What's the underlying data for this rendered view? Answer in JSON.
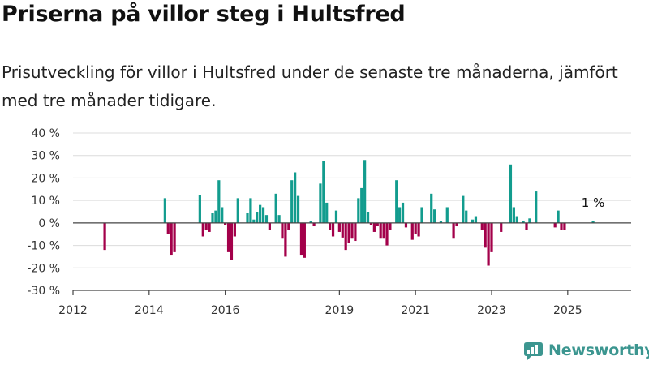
{
  "title": "Priserna på villor steg i Hultsfred",
  "subtitle": "Prisutveckling för villor i Hultsfred under de senaste tre månaderna, jämfört med tre månader tidigare.",
  "brand": "Newsworthy",
  "colors": {
    "positive": "#129c8e",
    "negative": "#a3004a",
    "grid": "#dcdcdc",
    "axis": "#444444",
    "brand": "#3c9690"
  },
  "chart_data": {
    "type": "bar",
    "x_axis": {
      "type": "date",
      "range": [
        "2012-01",
        "2026-09"
      ],
      "ticks": [
        "2012",
        "2014",
        "2016",
        "2019",
        "2021",
        "2023",
        "2025"
      ]
    },
    "y_axis": {
      "range": [
        -30,
        40
      ],
      "ticks": [
        "40 %",
        "30 %",
        "20 %",
        "10 %",
        "0 %",
        "-10 %",
        "-20 %",
        "-30 %"
      ],
      "unit": "%"
    },
    "grid": true,
    "annotation": {
      "text": "1 %",
      "at": "2025-09"
    },
    "series": [
      {
        "points": [
          [
            "2012-11",
            -12
          ],
          [
            "2014-06",
            11
          ],
          [
            "2014-07",
            -5
          ],
          [
            "2014-08",
            -14.5
          ],
          [
            "2014-09",
            -13
          ],
          [
            "2015-05",
            12.5
          ],
          [
            "2015-06",
            -6
          ],
          [
            "2015-07",
            -3
          ],
          [
            "2015-08",
            -4
          ],
          [
            "2015-09",
            4.5
          ],
          [
            "2015-10",
            5.5
          ],
          [
            "2015-11",
            19
          ],
          [
            "2015-12",
            7
          ],
          [
            "2016-01",
            -1
          ],
          [
            "2016-02",
            -13
          ],
          [
            "2016-03",
            -16.5
          ],
          [
            "2016-04",
            -6
          ],
          [
            "2016-05",
            11
          ],
          [
            "2016-08",
            4.5
          ],
          [
            "2016-09",
            11
          ],
          [
            "2016-10",
            1.5
          ],
          [
            "2016-11",
            5
          ],
          [
            "2016-12",
            8
          ],
          [
            "2017-01",
            7
          ],
          [
            "2017-02",
            3.5
          ],
          [
            "2017-03",
            -3
          ],
          [
            "2017-05",
            13
          ],
          [
            "2017-06",
            3.5
          ],
          [
            "2017-07",
            -7
          ],
          [
            "2017-08",
            -15
          ],
          [
            "2017-09",
            -3
          ],
          [
            "2017-10",
            19
          ],
          [
            "2017-11",
            22.5
          ],
          [
            "2017-12",
            12
          ],
          [
            "2018-01",
            -14.5
          ],
          [
            "2018-02",
            -15.5
          ],
          [
            "2018-04",
            1
          ],
          [
            "2018-05",
            -1.5
          ],
          [
            "2018-07",
            17.5
          ],
          [
            "2018-08",
            27.5
          ],
          [
            "2018-09",
            9
          ],
          [
            "2018-10",
            -3
          ],
          [
            "2018-11",
            -6
          ],
          [
            "2018-12",
            5.5
          ],
          [
            "2019-01",
            -4
          ],
          [
            "2019-02",
            -6.5
          ],
          [
            "2019-03",
            -12
          ],
          [
            "2019-04",
            -9
          ],
          [
            "2019-05",
            -7
          ],
          [
            "2019-06",
            -8
          ],
          [
            "2019-07",
            11
          ],
          [
            "2019-08",
            15.5
          ],
          [
            "2019-09",
            28
          ],
          [
            "2019-10",
            5
          ],
          [
            "2019-11",
            -1
          ],
          [
            "2019-12",
            -4
          ],
          [
            "2020-01",
            -1.5
          ],
          [
            "2020-02",
            -7
          ],
          [
            "2020-03",
            -7
          ],
          [
            "2020-04",
            -10
          ],
          [
            "2020-05",
            -3
          ],
          [
            "2020-07",
            19
          ],
          [
            "2020-08",
            7
          ],
          [
            "2020-09",
            9
          ],
          [
            "2020-10",
            -2
          ],
          [
            "2020-12",
            -7.5
          ],
          [
            "2021-01",
            -5
          ],
          [
            "2021-02",
            -6
          ],
          [
            "2021-03",
            7
          ],
          [
            "2021-06",
            13
          ],
          [
            "2021-07",
            6
          ],
          [
            "2021-09",
            1
          ],
          [
            "2021-11",
            7
          ],
          [
            "2022-01",
            -7
          ],
          [
            "2022-02",
            -1.5
          ],
          [
            "2022-04",
            12
          ],
          [
            "2022-05",
            5.5
          ],
          [
            "2022-07",
            1.5
          ],
          [
            "2022-08",
            3
          ],
          [
            "2022-10",
            -3
          ],
          [
            "2022-11",
            -11
          ],
          [
            "2022-12",
            -19
          ],
          [
            "2023-01",
            -13
          ],
          [
            "2023-04",
            -4
          ],
          [
            "2023-07",
            26
          ],
          [
            "2023-08",
            7
          ],
          [
            "2023-09",
            3
          ],
          [
            "2023-11",
            1
          ],
          [
            "2023-12",
            -3
          ],
          [
            "2024-01",
            2
          ],
          [
            "2024-03",
            14
          ],
          [
            "2024-09",
            -2
          ],
          [
            "2024-10",
            5.5
          ],
          [
            "2024-11",
            -3
          ],
          [
            "2024-12",
            -3
          ],
          [
            "2025-09",
            1
          ]
        ]
      }
    ]
  }
}
